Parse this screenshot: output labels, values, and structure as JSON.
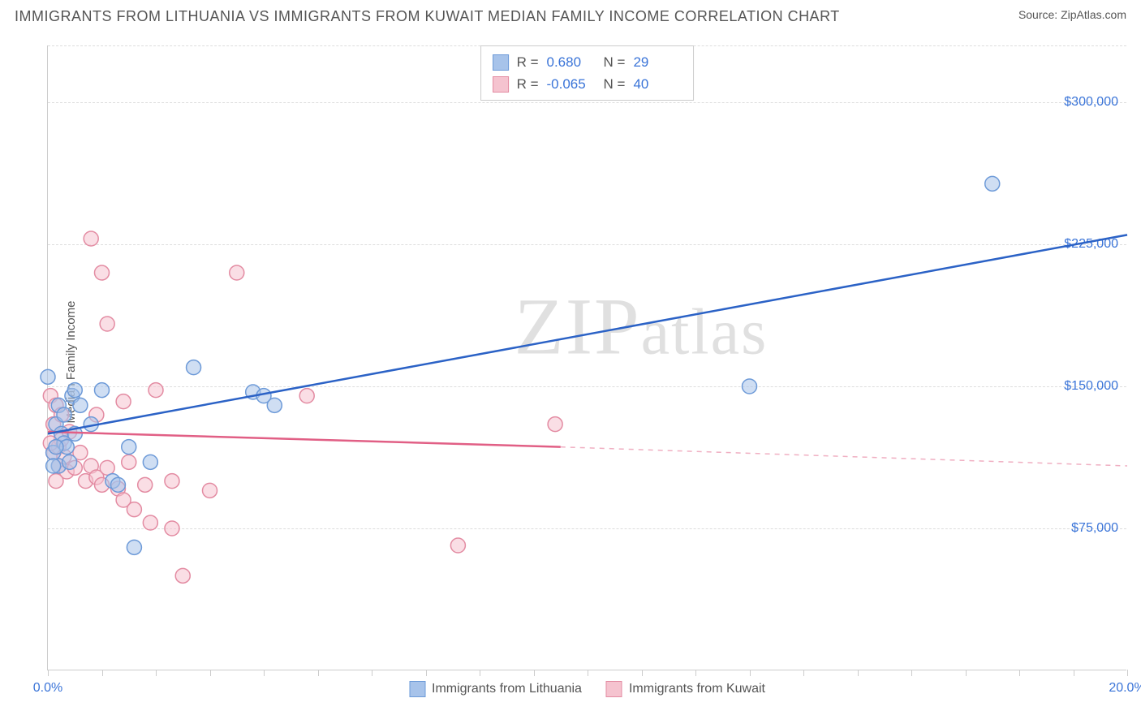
{
  "header": {
    "title": "IMMIGRANTS FROM LITHUANIA VS IMMIGRANTS FROM KUWAIT MEDIAN FAMILY INCOME CORRELATION CHART",
    "source": "Source: ZipAtlas.com"
  },
  "chart": {
    "type": "scatter",
    "y_label": "Median Family Income",
    "xlim": [
      0,
      20
    ],
    "ylim": [
      0,
      330000
    ],
    "y_ticks": [
      75000,
      150000,
      225000,
      300000
    ],
    "y_tick_labels": [
      "$75,000",
      "$150,000",
      "$225,000",
      "$300,000"
    ],
    "x_ticks_pct": [
      0,
      5,
      10,
      15,
      20,
      25,
      30,
      35,
      40,
      45,
      50,
      55,
      60,
      65,
      70,
      75,
      80,
      85,
      90,
      95,
      100
    ],
    "x_tick_labels": {
      "0": "0.0%",
      "100": "20.0%"
    },
    "grid_color": "#dddddd",
    "axis_color": "#cccccc",
    "background_color": "#ffffff",
    "watermark": "ZIPatlas",
    "series": [
      {
        "name": "Immigrants from Lithuania",
        "color_fill": "#a7c3ea",
        "color_stroke": "#6d9ad8",
        "line_color": "#2b62c6",
        "r_value": "0.680",
        "n_value": "29",
        "regression": {
          "x1": 0,
          "y1": 125000,
          "x2": 20,
          "y2": 230000,
          "dash_start": 20
        },
        "points": [
          {
            "x": 0.0,
            "y": 155000
          },
          {
            "x": 0.1,
            "y": 115000
          },
          {
            "x": 0.15,
            "y": 130000
          },
          {
            "x": 0.2,
            "y": 140000
          },
          {
            "x": 0.2,
            "y": 108000
          },
          {
            "x": 0.25,
            "y": 125000
          },
          {
            "x": 0.3,
            "y": 135000
          },
          {
            "x": 0.3,
            "y": 120000
          },
          {
            "x": 0.35,
            "y": 118000
          },
          {
            "x": 0.4,
            "y": 110000
          },
          {
            "x": 0.45,
            "y": 145000
          },
          {
            "x": 0.5,
            "y": 148000
          },
          {
            "x": 0.5,
            "y": 125000
          },
          {
            "x": 0.6,
            "y": 140000
          },
          {
            "x": 0.8,
            "y": 130000
          },
          {
            "x": 1.0,
            "y": 148000
          },
          {
            "x": 1.2,
            "y": 100000
          },
          {
            "x": 1.3,
            "y": 98000
          },
          {
            "x": 1.5,
            "y": 118000
          },
          {
            "x": 1.6,
            "y": 65000
          },
          {
            "x": 1.9,
            "y": 110000
          },
          {
            "x": 2.7,
            "y": 160000
          },
          {
            "x": 3.8,
            "y": 147000
          },
          {
            "x": 4.0,
            "y": 145000
          },
          {
            "x": 4.2,
            "y": 140000
          },
          {
            "x": 13.0,
            "y": 150000
          },
          {
            "x": 17.5,
            "y": 257000
          },
          {
            "x": 0.15,
            "y": 118000
          },
          {
            "x": 0.1,
            "y": 108000
          }
        ]
      },
      {
        "name": "Immigrants from Kuwait",
        "color_fill": "#f5c3cf",
        "color_stroke": "#e38ba2",
        "line_color": "#e15f85",
        "r_value": "-0.065",
        "n_value": "40",
        "regression": {
          "x1": 0,
          "y1": 126000,
          "x2": 9.5,
          "y2": 118000,
          "dash_start": 9.5,
          "x3": 20,
          "y3": 108000
        },
        "points": [
          {
            "x": 0.05,
            "y": 145000
          },
          {
            "x": 0.1,
            "y": 130000
          },
          {
            "x": 0.1,
            "y": 115000
          },
          {
            "x": 0.15,
            "y": 140000
          },
          {
            "x": 0.2,
            "y": 118000
          },
          {
            "x": 0.2,
            "y": 108000
          },
          {
            "x": 0.25,
            "y": 122000
          },
          {
            "x": 0.3,
            "y": 113000
          },
          {
            "x": 0.35,
            "y": 105000
          },
          {
            "x": 0.4,
            "y": 126000
          },
          {
            "x": 0.5,
            "y": 107000
          },
          {
            "x": 0.6,
            "y": 115000
          },
          {
            "x": 0.7,
            "y": 100000
          },
          {
            "x": 0.8,
            "y": 108000
          },
          {
            "x": 0.8,
            "y": 228000
          },
          {
            "x": 0.9,
            "y": 102000
          },
          {
            "x": 0.9,
            "y": 135000
          },
          {
            "x": 1.0,
            "y": 98000
          },
          {
            "x": 1.0,
            "y": 210000
          },
          {
            "x": 1.1,
            "y": 107000
          },
          {
            "x": 1.1,
            "y": 183000
          },
          {
            "x": 1.3,
            "y": 96000
          },
          {
            "x": 1.4,
            "y": 90000
          },
          {
            "x": 1.4,
            "y": 142000
          },
          {
            "x": 1.5,
            "y": 110000
          },
          {
            "x": 1.6,
            "y": 85000
          },
          {
            "x": 1.8,
            "y": 98000
          },
          {
            "x": 1.9,
            "y": 78000
          },
          {
            "x": 2.0,
            "y": 148000
          },
          {
            "x": 2.3,
            "y": 75000
          },
          {
            "x": 2.3,
            "y": 100000
          },
          {
            "x": 2.5,
            "y": 50000
          },
          {
            "x": 3.0,
            "y": 95000
          },
          {
            "x": 3.5,
            "y": 210000
          },
          {
            "x": 4.8,
            "y": 145000
          },
          {
            "x": 7.6,
            "y": 66000
          },
          {
            "x": 9.4,
            "y": 130000
          },
          {
            "x": 0.15,
            "y": 100000
          },
          {
            "x": 0.25,
            "y": 135000
          },
          {
            "x": 0.05,
            "y": 120000
          }
        ]
      }
    ],
    "legend_bottom": [
      {
        "label": "Immigrants from Lithuania",
        "fill": "#a7c3ea",
        "stroke": "#6d9ad8"
      },
      {
        "label": "Immigrants from Kuwait",
        "fill": "#f5c3cf",
        "stroke": "#e38ba2"
      }
    ]
  }
}
